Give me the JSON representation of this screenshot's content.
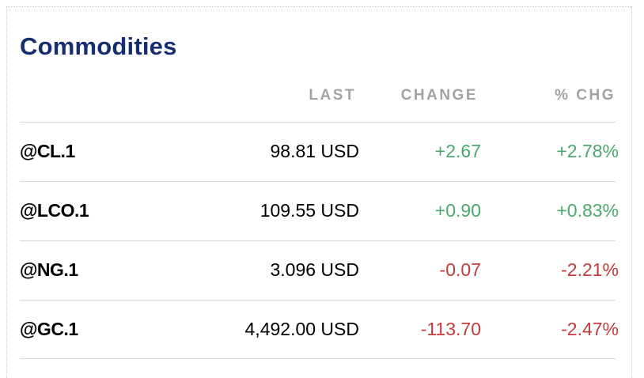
{
  "widget": {
    "title": "Commodities",
    "headers": {
      "last": "LAST",
      "change": "CHANGE",
      "pct_change": "% CHG"
    },
    "rows": [
      {
        "symbol": "@CL.1",
        "last": "98.81 USD",
        "change": "+2.67",
        "pct_change": "+2.78%",
        "direction": "up"
      },
      {
        "symbol": "@LCO.1",
        "last": "109.55 USD",
        "change": "+0.90",
        "pct_change": "+0.83%",
        "direction": "up"
      },
      {
        "symbol": "@NG.1",
        "last": "3.096 USD",
        "change": "-0.07",
        "pct_change": "-2.21%",
        "direction": "down"
      },
      {
        "symbol": "@GC.1",
        "last": "4,492.00 USD",
        "change": "-113.70",
        "pct_change": "-2.47%",
        "direction": "down"
      }
    ]
  },
  "colors": {
    "title": "#162d6e",
    "header": "#a3a3a3",
    "positive": "#4aa86c",
    "negative": "#c43b3b"
  }
}
